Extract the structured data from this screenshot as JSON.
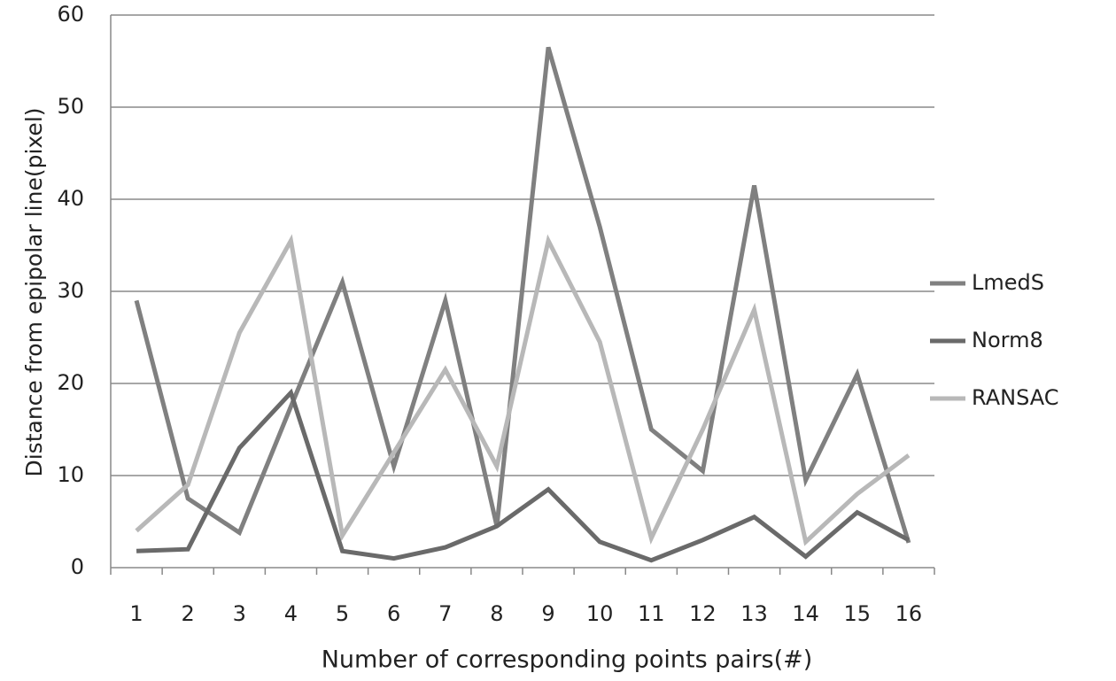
{
  "chart_data": {
    "type": "line",
    "x_label": "Number of corresponding points pairs(#)",
    "y_label": "Distance from epipolar  line(pixel)",
    "categories": [
      "1",
      "2",
      "3",
      "4",
      "5",
      "6",
      "7",
      "8",
      "9",
      "10",
      "11",
      "12",
      "13",
      "14",
      "15",
      "16"
    ],
    "series": [
      {
        "name": "LmedS",
        "color": "#808080",
        "values": [
          29,
          7.5,
          3.8,
          17.5,
          31,
          11,
          29,
          4.5,
          56.5,
          37,
          15,
          10.5,
          41.5,
          9.5,
          21,
          2.7
        ]
      },
      {
        "name": "Norm8",
        "color": "#6a6a6a",
        "values": [
          1.8,
          2,
          13,
          19,
          1.8,
          1,
          2.2,
          4.5,
          8.5,
          2.8,
          0.8,
          3,
          5.5,
          1.2,
          6,
          3
        ]
      },
      {
        "name": "RANSAC",
        "color": "#b8b8b8",
        "values": [
          4,
          9,
          25.5,
          35.5,
          3.5,
          12.5,
          21.5,
          11,
          35.5,
          24.5,
          3.2,
          15,
          28,
          2.8,
          8,
          12.2
        ]
      }
    ],
    "ylim": [
      0,
      60
    ],
    "yticks": [
      0,
      10,
      20,
      30,
      40,
      50,
      60
    ],
    "grid": true,
    "legend": "right"
  }
}
